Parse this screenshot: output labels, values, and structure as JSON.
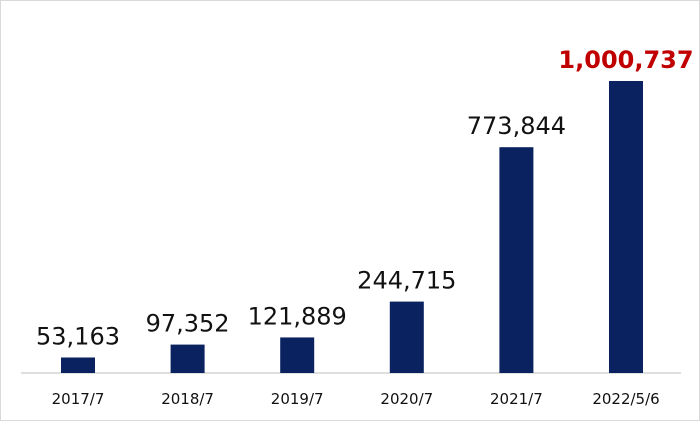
{
  "chart_data": {
    "type": "bar",
    "categories": [
      "2017/7",
      "2018/7",
      "2019/7",
      "2020/7",
      "2021/7",
      "2022/5/6"
    ],
    "values": [
      53163,
      97352,
      121889,
      244715,
      773844,
      1000737
    ],
    "data_labels": [
      "53,163",
      "97,352",
      "121,889",
      "244,715",
      "773,844",
      "1,000,737"
    ],
    "highlight_index": 5,
    "ylim": [
      0,
      1000737
    ],
    "grid": false,
    "legend": "none",
    "colors": {
      "bar": "#0b2260",
      "highlight_label": "#c00000",
      "label": "#111111",
      "axis": "#bfbfbf"
    }
  }
}
